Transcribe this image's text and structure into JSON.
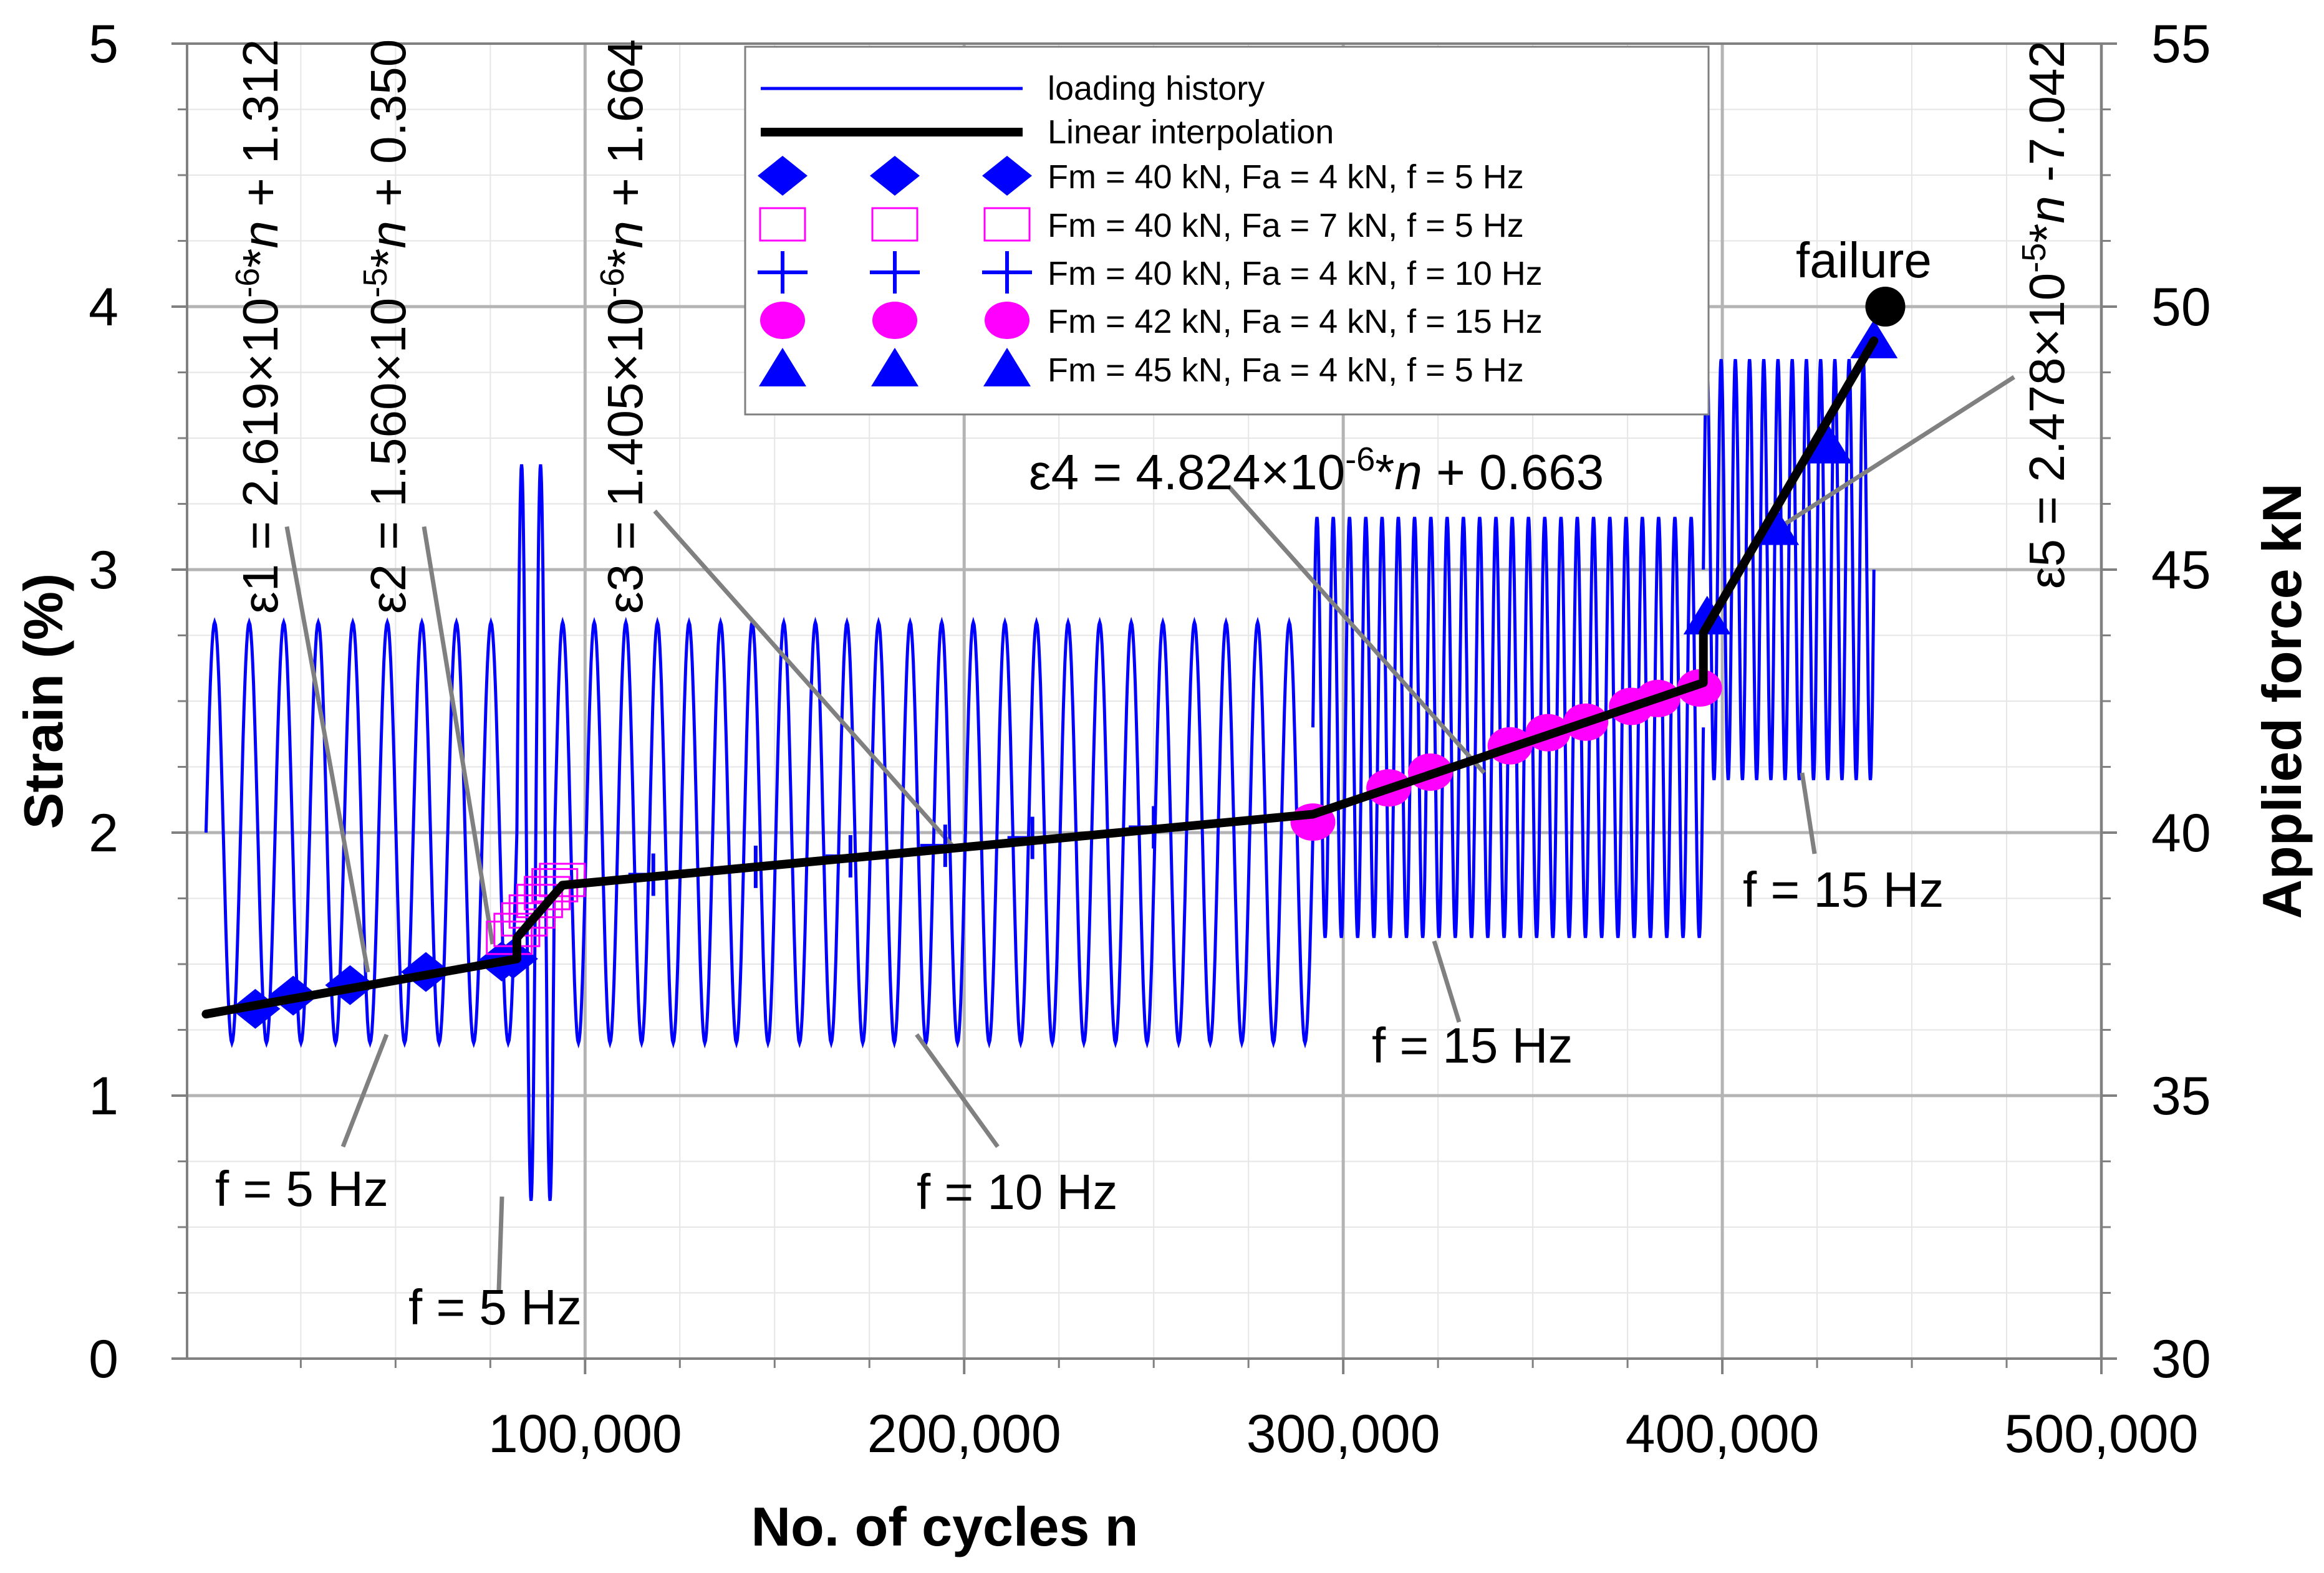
{
  "chart_data": {
    "type": "line",
    "xlabel": "No. of  cycles  n",
    "ylabel_left": "Strain (%)",
    "ylabel_right": "Applied force kN",
    "xlim": [
      -5000,
      500000
    ],
    "ylim_left": [
      0,
      5
    ],
    "ylim_right": [
      30,
      55
    ],
    "x_ticks": [
      100000,
      200000,
      300000,
      400000,
      500000
    ],
    "x_tick_labels": [
      "100,000",
      "200,000",
      "300,000",
      "400,000",
      "500,000"
    ],
    "y_left_ticks": [
      0,
      1,
      2,
      3,
      4,
      5
    ],
    "y_left_tick_labels": [
      "0",
      "1",
      "2",
      "3",
      "4",
      "5"
    ],
    "y_right_ticks": [
      30,
      35,
      40,
      45,
      50,
      55
    ],
    "y_right_tick_labels": [
      "30",
      "35",
      "40",
      "45",
      "50",
      "55"
    ],
    "grid": true,
    "legend_position": "top-center",
    "legend": [
      {
        "label": "loading history",
        "style": "thin-blue-line"
      },
      {
        "label": "Linear interpolation",
        "style": "thick-black-line"
      },
      {
        "label": "Fm = 40 kN, Fa = 4 kN,  f = 5 Hz",
        "marker": "diamond",
        "color": "#0000ff"
      },
      {
        "label": "Fm = 40 kN, Fa = 7 kN,  f = 5 Hz",
        "marker": "open-square",
        "color": "#ff00ff"
      },
      {
        "label": "Fm = 40 kN, Fa = 4 kN,  f = 10 Hz",
        "marker": "plus",
        "color": "#0000ff"
      },
      {
        "label": "Fm = 42 kN, Fa = 4 kN,  f = 15 Hz",
        "marker": "circle",
        "color": "#ff00ff"
      },
      {
        "label": "Fm = 45 kN, Fa = 4 kN,  f = 5 Hz",
        "marker": "triangle",
        "color": "#0000ff"
      }
    ],
    "loading_history_segments": [
      {
        "x_start": 0,
        "x_end": 82000,
        "mean_force_kN": 40,
        "amp_force_kN": 4,
        "cycles_drawn": 9
      },
      {
        "x_start": 82000,
        "x_end": 92000,
        "mean_force_kN": 40,
        "amp_force_kN": 7,
        "cycles_drawn": 2
      },
      {
        "x_start": 92000,
        "x_end": 292000,
        "mean_force_kN": 40,
        "amp_force_kN": 4,
        "cycles_drawn": 24
      },
      {
        "x_start": 292000,
        "x_end": 395000,
        "mean_force_kN": 42,
        "amp_force_kN": 4,
        "cycles_drawn": 24
      },
      {
        "x_start": 395000,
        "x_end": 440000,
        "mean_force_kN": 45,
        "amp_force_kN": 4,
        "cycles_drawn": 12
      }
    ],
    "series": [
      {
        "name": "Linear interpolation",
        "x": [
          0,
          82000,
          82000,
          94000,
          292000,
          292000,
          395000,
          395000,
          440000
        ],
        "y": [
          1.31,
          1.52,
          1.6,
          1.8,
          2.07,
          2.07,
          2.57,
          2.76,
          3.87
        ]
      },
      {
        "name": "Fm = 40 kN, Fa = 4 kN,  f = 5 Hz",
        "x": [
          13000,
          23000,
          38000,
          58000,
          78000,
          81000
        ],
        "y": [
          1.33,
          1.38,
          1.42,
          1.47,
          1.51,
          1.52
        ]
      },
      {
        "name": "Fm = 40 kN, Fa = 7 kN,  f = 5 Hz",
        "x": [
          80000,
          82000,
          84000,
          86000,
          88000,
          90000,
          92000,
          94000
        ],
        "y": [
          1.6,
          1.63,
          1.67,
          1.7,
          1.74,
          1.77,
          1.8,
          1.82
        ]
      },
      {
        "name": "Fm = 40 kN, Fa = 4 kN,  f = 10 Hz",
        "x": [
          118000,
          145000,
          170000,
          195000,
          218000,
          250000
        ],
        "y": [
          1.84,
          1.87,
          1.91,
          1.95,
          1.98,
          2.02
        ]
      },
      {
        "name": "Fm = 42 kN, Fa = 4 kN,  f = 15 Hz",
        "x": [
          292000,
          312000,
          323000,
          344000,
          354000,
          364000,
          376000,
          383000,
          394000
        ],
        "y": [
          2.04,
          2.17,
          2.23,
          2.33,
          2.38,
          2.42,
          2.48,
          2.51,
          2.55
        ]
      },
      {
        "name": "Fm = 45 kN, Fa = 4 kN,  f = 5 Hz",
        "x": [
          396000,
          414000,
          428000,
          440000
        ],
        "y": [
          2.82,
          3.16,
          3.47,
          3.87
        ]
      }
    ],
    "failure_point": {
      "x": 443000,
      "y": 4.0
    },
    "annotations": {
      "failure": "failure",
      "f5hz_a": "f = 5 Hz",
      "f5hz_b": "f = 5 Hz",
      "f10hz": "f = 10 Hz",
      "f15hz_a": "f = 15 Hz",
      "f15hz_b": "f = 15 Hz",
      "eq1_lhs": "ε1 = 2.619×10",
      "eq1_exp": "-6",
      "eq1_star": "*",
      "eq1_n": "n",
      "eq1_rest": " + 1.312",
      "eq2_lhs": "ε2 = 1.560×10",
      "eq2_exp": "-5",
      "eq2_star": "*",
      "eq2_n": "n",
      "eq2_rest": " + 0.350",
      "eq3_lhs": "ε3 = 1.405×10",
      "eq3_exp": "-6",
      "eq3_star": "*",
      "eq3_n": "n",
      "eq3_rest": " + 1.664",
      "eq4_lhs": "ε4 = 4.824×10",
      "eq4_exp": "-6",
      "eq4_star": "*",
      "eq4_n": "n",
      "eq4_rest": " + 0.663",
      "eq5_lhs": "ε5 = 2.478×10",
      "eq5_exp": "-5",
      "eq5_star": "*",
      "eq5_n": "n",
      "eq5_rest": " -7.042"
    },
    "colors": {
      "history": "#0000ff",
      "interp": "#000000",
      "marker_blue": "#0000ff",
      "marker_magenta": "#ff00ff",
      "leader": "#808080",
      "grid_major": "#b4b4b4",
      "grid_minor": "#e6e6e6"
    }
  }
}
